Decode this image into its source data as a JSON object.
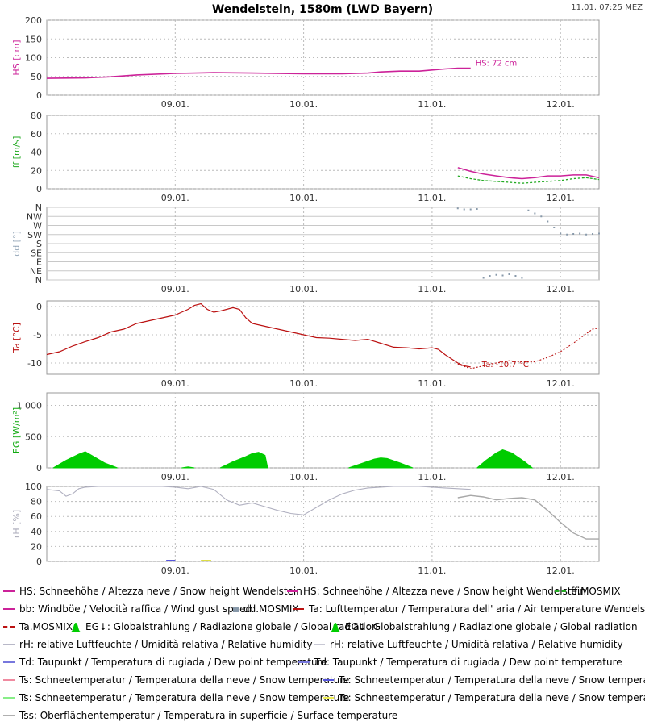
{
  "header": {
    "title": "Wendelstein, 1580m (LWD Bayern)",
    "timestamp": "11.01. 07:25 MEZ"
  },
  "colors": {
    "hs": "#cc2299",
    "ff": "#cc2299",
    "ff_mosmix": "#22aa22",
    "dd": "#6688aa",
    "ta": "#bb1111",
    "eg": "#00cc00",
    "rh": "#b8b8c8",
    "td": "#5555dd",
    "ts_yellow": "#dddd44",
    "grid": "#bbbbbb"
  },
  "x_axis": {
    "labels": [
      "09.01.",
      "10.01.",
      "11.01.",
      "12.01."
    ],
    "positions_days": [
      1,
      2,
      3,
      4
    ],
    "range_days": [
      0,
      4.3
    ]
  },
  "chart_data": [
    {
      "id": "hs",
      "type": "line",
      "ylabel": "HS [cm]",
      "yticks": [
        "0",
        "50",
        "100",
        "150",
        "200"
      ],
      "ytick_values": [
        0,
        50,
        100,
        150,
        200
      ],
      "ylim": [
        0,
        200
      ],
      "annotation": "HS: 72 cm",
      "annotation_at": [
        3.3,
        72
      ],
      "series": [
        {
          "name": "HS Wendelstein",
          "x": [
            0,
            0.3,
            0.5,
            0.7,
            1.0,
            1.3,
            1.6,
            2.0,
            2.3,
            2.5,
            2.6,
            2.75,
            2.9,
            3.0,
            3.1,
            3.2,
            3.3
          ],
          "y": [
            45,
            46,
            49,
            54,
            58,
            60,
            59,
            57,
            57,
            59,
            62,
            64,
            64,
            67,
            70,
            72,
            72
          ]
        }
      ]
    },
    {
      "id": "ff",
      "type": "line",
      "ylabel": "ff [m/s]",
      "yticks": [
        "0",
        "20",
        "40",
        "60",
        "80"
      ],
      "ytick_values": [
        0,
        20,
        40,
        60,
        80
      ],
      "ylim": [
        0,
        80
      ],
      "series": [
        {
          "name": "bb gust",
          "x": [
            3.2,
            3.3,
            3.4,
            3.5,
            3.6,
            3.7,
            3.8,
            3.9,
            4.0,
            4.1,
            4.2,
            4.3
          ],
          "y": [
            23,
            19,
            16,
            14,
            12,
            11,
            12,
            14,
            14,
            15,
            15,
            12
          ]
        },
        {
          "name": "ff.MOSMIX",
          "x": [
            3.2,
            3.3,
            3.4,
            3.5,
            3.6,
            3.7,
            3.8,
            3.9,
            4.0,
            4.1,
            4.2,
            4.3
          ],
          "y": [
            14,
            11,
            9,
            8,
            7,
            6,
            7,
            8,
            9,
            11,
            12,
            10
          ]
        }
      ]
    },
    {
      "id": "dd",
      "type": "scatter",
      "ylabel": "dd [°]",
      "yticks": [
        "N",
        "NW",
        "W",
        "SW",
        "S",
        "SE",
        "E",
        "NE",
        "N"
      ],
      "ytick_values": [
        360,
        315,
        270,
        225,
        180,
        135,
        90,
        45,
        0
      ],
      "ylim": [
        0,
        360
      ],
      "series": [
        {
          "name": "dd.MOSMIX",
          "x": [
            3.2,
            3.25,
            3.3,
            3.35,
            3.4,
            3.45,
            3.5,
            3.55,
            3.6,
            3.65,
            3.7,
            3.75,
            3.8,
            3.85,
            3.9,
            3.95,
            4.0,
            4.05,
            4.1,
            4.15,
            4.2,
            4.25,
            4.3
          ],
          "y": [
            355,
            350,
            350,
            352,
            10,
            20,
            25,
            22,
            28,
            20,
            10,
            345,
            330,
            315,
            290,
            260,
            230,
            225,
            228,
            230,
            225,
            228,
            230
          ]
        }
      ]
    },
    {
      "id": "ta",
      "type": "line",
      "ylabel": "Ta [°C]",
      "yticks": [
        "0",
        "-5",
        "-10"
      ],
      "ytick_values": [
        0,
        -5,
        -10
      ],
      "ylim": [
        -12,
        1
      ],
      "annotation": "Ta: -10,7 °C",
      "annotation_at": [
        3.35,
        -10.7
      ],
      "series": [
        {
          "name": "Ta Wendelstein",
          "x": [
            0,
            0.1,
            0.2,
            0.3,
            0.4,
            0.5,
            0.6,
            0.7,
            0.8,
            0.9,
            1.0,
            1.05,
            1.1,
            1.15,
            1.2,
            1.25,
            1.3,
            1.35,
            1.4,
            1.45,
            1.5,
            1.55,
            1.6,
            1.7,
            1.8,
            1.9,
            2.0,
            2.1,
            2.2,
            2.3,
            2.4,
            2.5,
            2.6,
            2.7,
            2.8,
            2.9,
            3.0,
            3.05,
            3.1,
            3.2,
            3.25,
            3.3
          ],
          "y": [
            -8.5,
            -8.0,
            -7.0,
            -6.2,
            -5.5,
            -4.5,
            -4.0,
            -3.0,
            -2.5,
            -2.0,
            -1.5,
            -1.0,
            -0.5,
            0.2,
            0.5,
            -0.5,
            -1.0,
            -0.8,
            -0.5,
            -0.2,
            -0.5,
            -2.0,
            -3.0,
            -3.5,
            -4.0,
            -4.5,
            -5.0,
            -5.5,
            -5.6,
            -5.8,
            -6.0,
            -5.8,
            -6.5,
            -7.2,
            -7.3,
            -7.5,
            -7.3,
            -7.6,
            -8.5,
            -10.0,
            -10.5,
            -10.7
          ]
        },
        {
          "name": "Ta.MOSMIX",
          "x": [
            3.2,
            3.3,
            3.4,
            3.5,
            3.6,
            3.7,
            3.8,
            3.9,
            4.0,
            4.1,
            4.2,
            4.25,
            4.3
          ],
          "y": [
            -10.2,
            -11.0,
            -10.5,
            -10.0,
            -9.6,
            -9.8,
            -9.8,
            -9.0,
            -8.0,
            -6.5,
            -4.8,
            -4.0,
            -3.8
          ]
        }
      ]
    },
    {
      "id": "eg",
      "type": "area",
      "ylabel": "EG [W/m²]",
      "yticks": [
        "0",
        "500",
        "1 000"
      ],
      "ytick_values": [
        0,
        500,
        1000
      ],
      "ylim": [
        0,
        1200
      ],
      "series": [
        {
          "name": "EG measured",
          "x": [
            0.05,
            0.15,
            0.25,
            0.3,
            0.35,
            0.45,
            0.55
          ],
          "y": [
            0,
            120,
            220,
            260,
            200,
            80,
            0
          ]
        },
        {
          "name": "EG measured",
          "x": [
            1.05,
            1.1,
            1.15
          ],
          "y": [
            0,
            15,
            0
          ]
        },
        {
          "name": "EG measured",
          "x": [
            1.35,
            1.45,
            1.55,
            1.6,
            1.65,
            1.7,
            1.72
          ],
          "y": [
            0,
            100,
            180,
            230,
            250,
            200,
            0
          ]
        },
        {
          "name": "EG measured",
          "x": [
            2.35,
            2.45,
            2.55,
            2.6,
            2.65,
            2.75,
            2.85
          ],
          "y": [
            0,
            70,
            140,
            160,
            150,
            80,
            0
          ]
        },
        {
          "name": "EG.MOSMIX",
          "x": [
            3.35,
            3.42,
            3.5,
            3.55,
            3.62,
            3.72,
            3.78
          ],
          "y": [
            0,
            120,
            240,
            290,
            240,
            100,
            0
          ]
        }
      ]
    },
    {
      "id": "rh",
      "type": "line",
      "ylabel": "rH [%]",
      "yticks": [
        "0",
        "20",
        "40",
        "60",
        "80",
        "100"
      ],
      "ytick_values": [
        0,
        20,
        40,
        60,
        80,
        100
      ],
      "ylim": [
        0,
        100
      ],
      "series": [
        {
          "name": "rH measured",
          "x": [
            0,
            0.1,
            0.15,
            0.2,
            0.25,
            0.3,
            0.4,
            0.5,
            0.6,
            0.7,
            0.8,
            0.9,
            1.0,
            1.1,
            1.2,
            1.3,
            1.4,
            1.5,
            1.6,
            1.7,
            1.8,
            1.9,
            2.0,
            2.1,
            2.2,
            2.3,
            2.4,
            2.5,
            2.6,
            2.7,
            2.8,
            2.9,
            3.0,
            3.1,
            3.2,
            3.3
          ],
          "y": [
            96,
            94,
            87,
            90,
            97,
            99,
            100,
            100,
            100,
            100,
            100,
            100,
            99,
            97,
            100,
            96,
            82,
            75,
            78,
            73,
            68,
            64,
            62,
            72,
            82,
            90,
            95,
            98,
            99,
            100,
            100,
            100,
            99,
            98,
            97,
            96
          ]
        },
        {
          "name": "rH MOSMIX",
          "x": [
            3.2,
            3.3,
            3.4,
            3.5,
            3.6,
            3.7,
            3.8,
            3.9,
            4.0,
            4.1,
            4.2,
            4.3
          ],
          "y": [
            85,
            88,
            86,
            82,
            84,
            85,
            82,
            68,
            52,
            38,
            30,
            30
          ]
        }
      ]
    }
  ],
  "legend": [
    [
      {
        "color": "#cc2299",
        "style": "solid",
        "text": "HS: Schneehöhe / Altezza neve / Snow height  Wendelstein"
      },
      {
        "color": "#cc2299",
        "style": "solid",
        "text": "HS: Schneehöhe / Altezza neve / Snow height  Wendelstein"
      },
      {
        "color": "#22aa22",
        "style": "dash",
        "text": "ff.MOSMIX"
      }
    ],
    [
      {
        "color": "#cc2299",
        "style": "solid",
        "text": "bb: Windböe / Velocità raffica / Wind gust speed"
      },
      {
        "color": "#8899aa",
        "style": "square",
        "text": "dd.MOSMIX"
      },
      {
        "color": "#bb1111",
        "style": "solid",
        "text": "Ta: Lufttemperatur / Temperatura dell' aria / Air temperature  Wendelstein"
      }
    ],
    [
      {
        "color": "#bb1111",
        "style": "dash",
        "text": "Ta.MOSMIX"
      },
      {
        "color": "#00cc00",
        "style": "bell",
        "text": "EG↓: Globalstrahlung / Radiazione globale / Global radiation"
      },
      {
        "color": "#00cc00",
        "style": "bell",
        "text": "EG↓: Globalstrahlung / Radiazione globale / Global radiation"
      }
    ],
    [
      {
        "color": "#b8b8c8",
        "style": "solid",
        "text": "rH: relative Luftfeuchte / Umidità relativa / Relative humidity"
      },
      {
        "color": "#c8c8d4",
        "style": "solid",
        "text": "rH: relative Luftfeuchte / Umidità relativa / Relative humidity"
      }
    ],
    [
      {
        "color": "#7777dd",
        "style": "solid",
        "text": "Td: Taupunkt / Temperatura di rugiada / Dew point temperature"
      },
      {
        "color": "#7777dd",
        "style": "solid",
        "text": "Td: Taupunkt / Temperatura di rugiada / Dew point temperature"
      }
    ],
    [
      {
        "color": "#f08aa0",
        "style": "solid",
        "text": "Ts: Schneetemperatur / Temperatura della neve / Snow temperature"
      },
      {
        "color": "#5555dd",
        "style": "solid",
        "text": "Ts: Schneetemperatur / Temperatura della neve / Snow temperature"
      }
    ],
    [
      {
        "color": "#88ee88",
        "style": "solid",
        "text": "Ts: Schneetemperatur / Temperatura della neve / Snow temperature"
      },
      {
        "color": "#eeee55",
        "style": "solid",
        "text": "Ts: Schneetemperatur / Temperatura della neve / Snow temperature"
      }
    ],
    [
      {
        "color": "#b0b0b0",
        "style": "solid",
        "text": "Tss: Oberflächentemperatur / Temperatura in superficie / Surface temperature"
      }
    ]
  ]
}
